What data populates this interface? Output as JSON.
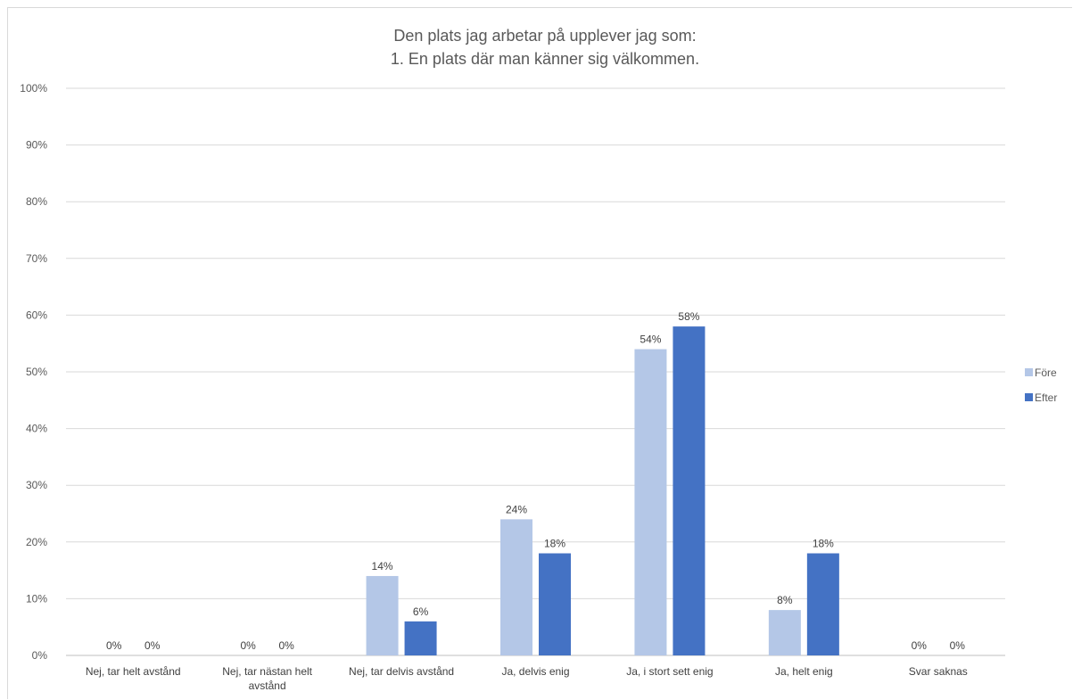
{
  "chart_data": {
    "type": "bar",
    "title_lines": [
      "Den plats jag arbetar på upplever jag som:",
      "1. En plats där man känner sig välkommen."
    ],
    "categories": [
      [
        "Nej, tar helt avstånd"
      ],
      [
        "Nej, tar nästan helt",
        "avstånd"
      ],
      [
        "Nej, tar delvis avstånd"
      ],
      [
        "Ja, delvis enig"
      ],
      [
        "Ja, i stort sett enig"
      ],
      [
        "Ja, helt enig"
      ],
      [
        "Svar saknas"
      ]
    ],
    "series": [
      {
        "name": "Före",
        "color": "#b4c7e7",
        "values": [
          0,
          0,
          14,
          24,
          54,
          8,
          0
        ],
        "labels": [
          "0%",
          "0%",
          "14%",
          "24%",
          "54%",
          "8%",
          "0%"
        ]
      },
      {
        "name": "Efter",
        "color": "#4472c4",
        "values": [
          0,
          0,
          6,
          18,
          58,
          18,
          0
        ],
        "labels": [
          "0%",
          "0%",
          "6%",
          "18%",
          "58%",
          "18%",
          "0%"
        ]
      }
    ],
    "y_ticks": [
      "0%",
      "10%",
      "20%",
      "30%",
      "40%",
      "50%",
      "60%",
      "70%",
      "80%",
      "90%",
      "100%"
    ],
    "ylim": [
      0,
      100
    ],
    "grid": true,
    "legend_position": "right"
  }
}
